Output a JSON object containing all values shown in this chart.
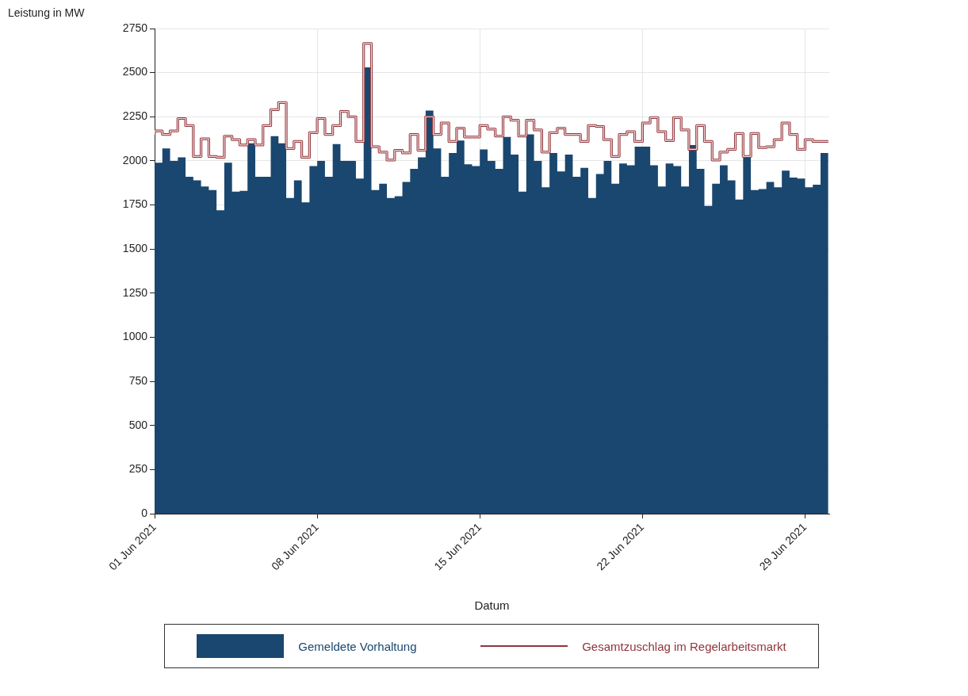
{
  "chart_data": {
    "type": "area",
    "xlabel": "Datum",
    "ylabel": "Leistung in MW",
    "x": [
      "2021-06-01T00:00",
      "2021-06-01T08:00",
      "2021-06-01T16:00",
      "2021-06-02T00:00",
      "2021-06-02T08:00",
      "2021-06-02T16:00",
      "2021-06-03T00:00",
      "2021-06-03T08:00",
      "2021-06-03T16:00",
      "2021-06-04T00:00",
      "2021-06-04T08:00",
      "2021-06-04T16:00",
      "2021-06-05T00:00",
      "2021-06-05T08:00",
      "2021-06-05T16:00",
      "2021-06-06T00:00",
      "2021-06-06T08:00",
      "2021-06-06T16:00",
      "2021-06-07T00:00",
      "2021-06-07T08:00",
      "2021-06-07T16:00",
      "2021-06-08T00:00",
      "2021-06-08T08:00",
      "2021-06-08T16:00",
      "2021-06-09T00:00",
      "2021-06-09T08:00",
      "2021-06-09T16:00",
      "2021-06-10T00:00",
      "2021-06-10T08:00",
      "2021-06-10T16:00",
      "2021-06-11T00:00",
      "2021-06-11T08:00",
      "2021-06-11T16:00",
      "2021-06-12T00:00",
      "2021-06-12T08:00",
      "2021-06-12T16:00",
      "2021-06-13T00:00",
      "2021-06-13T08:00",
      "2021-06-13T16:00",
      "2021-06-14T00:00",
      "2021-06-14T08:00",
      "2021-06-14T16:00",
      "2021-06-15T00:00",
      "2021-06-15T08:00",
      "2021-06-15T16:00",
      "2021-06-16T00:00",
      "2021-06-16T08:00",
      "2021-06-16T16:00",
      "2021-06-17T00:00",
      "2021-06-17T08:00",
      "2021-06-17T16:00",
      "2021-06-18T00:00",
      "2021-06-18T08:00",
      "2021-06-18T16:00",
      "2021-06-19T00:00",
      "2021-06-19T08:00",
      "2021-06-19T16:00",
      "2021-06-20T00:00",
      "2021-06-20T08:00",
      "2021-06-20T16:00",
      "2021-06-21T00:00",
      "2021-06-21T08:00",
      "2021-06-21T16:00",
      "2021-06-22T00:00",
      "2021-06-22T08:00",
      "2021-06-22T16:00",
      "2021-06-23T00:00",
      "2021-06-23T08:00",
      "2021-06-23T16:00",
      "2021-06-24T00:00",
      "2021-06-24T08:00",
      "2021-06-24T16:00",
      "2021-06-25T00:00",
      "2021-06-25T08:00",
      "2021-06-25T16:00",
      "2021-06-26T00:00",
      "2021-06-26T08:00",
      "2021-06-26T16:00",
      "2021-06-27T00:00",
      "2021-06-27T08:00",
      "2021-06-27T16:00",
      "2021-06-28T00:00",
      "2021-06-28T08:00",
      "2021-06-28T16:00",
      "2021-06-29T00:00",
      "2021-06-29T08:00",
      "2021-06-29T16:00",
      "2021-06-30T00:00"
    ],
    "series": [
      {
        "name": "Gemeldete Vorhaltung",
        "type": "area",
        "color": "#1a476f",
        "values": [
          1960,
          1990,
          2070,
          2000,
          2020,
          1910,
          1890,
          1855,
          1835,
          1720,
          1990,
          1825,
          1830,
          2100,
          1910,
          1910,
          2140,
          2100,
          1790,
          1890,
          1765,
          1970,
          2000,
          1910,
          2095,
          2000,
          2000,
          1900,
          2530,
          1835,
          1870,
          1790,
          1800,
          1880,
          1955,
          2020,
          2285,
          2070,
          1910,
          2045,
          2115,
          1980,
          1970,
          2065,
          2000,
          1955,
          2135,
          2035,
          1825,
          2150,
          2000,
          1850,
          2045,
          1940,
          2035,
          1910,
          1960,
          1790,
          1925,
          2000,
          1870,
          1985,
          1975,
          2080,
          2080,
          1975,
          1855,
          1985,
          1970,
          1855,
          2090,
          1955,
          1745,
          1870,
          1975,
          1890,
          1780,
          2020,
          1835,
          1840,
          1880,
          1850,
          1945,
          1905,
          1900,
          1850,
          1865,
          2045
        ]
      },
      {
        "name": "Gesamtzuschlag im Regelarbeitsmarkt",
        "type": "step",
        "color": "#90353b",
        "values": [
          2150,
          2170,
          2150,
          2170,
          2240,
          2200,
          2025,
          2125,
          2025,
          2020,
          2140,
          2120,
          2090,
          2120,
          2090,
          2200,
          2290,
          2330,
          2070,
          2110,
          2020,
          2160,
          2240,
          2150,
          2200,
          2280,
          2250,
          2110,
          2665,
          2080,
          2050,
          2005,
          2060,
          2045,
          2150,
          2060,
          2250,
          2150,
          2215,
          2110,
          2185,
          2135,
          2135,
          2200,
          2180,
          2140,
          2250,
          2230,
          2140,
          2230,
          2175,
          2050,
          2160,
          2185,
          2150,
          2150,
          2110,
          2200,
          2195,
          2120,
          2025,
          2150,
          2165,
          2110,
          2215,
          2245,
          2165,
          2115,
          2245,
          2175,
          2065,
          2200,
          2110,
          2005,
          2050,
          2065,
          2155,
          2025,
          2155,
          2075,
          2080,
          2120,
          2215,
          2150,
          2065,
          2120,
          2110,
          2110
        ]
      }
    ],
    "xlim": [
      "2021-06-01T00:00",
      "2021-06-30T01:00"
    ],
    "xticks": [
      {
        "value": "2021-06-01",
        "label": "01 Jun 2021"
      },
      {
        "value": "2021-06-08",
        "label": "08 Jun 2021"
      },
      {
        "value": "2021-06-15",
        "label": "15 Jun 2021"
      },
      {
        "value": "2021-06-22",
        "label": "22 Jun 2021"
      },
      {
        "value": "2021-06-29",
        "label": "29 Jun 2021"
      }
    ],
    "ylim": [
      0,
      2750
    ],
    "yticks": [
      0,
      250,
      500,
      750,
      1000,
      1250,
      1500,
      1750,
      2000,
      2250,
      2500,
      2750
    ],
    "grid": true,
    "legend": "bottom"
  }
}
